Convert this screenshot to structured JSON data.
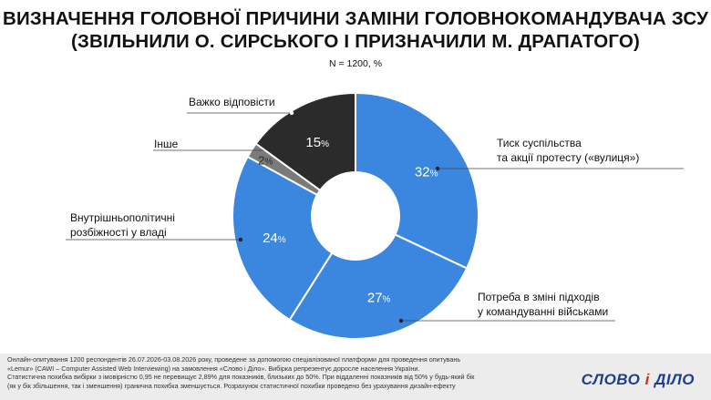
{
  "title_line1": "ВИЗНАЧЕННЯ ГОЛОВНОЇ ПРИЧИНИ ЗАМІНИ ГОЛОВНОКОМАНДУВАЧА ЗСУ",
  "title_line2": "(ЗВІЛЬНИЛИ О. СИРСЬКОГО І ПРИЗНАЧИЛИ М. ДРАПАТОГО)",
  "subtitle": "N = 1200, %",
  "chart_data": {
    "type": "pie",
    "variant": "donut",
    "start": "12 o'clock, clockwise",
    "slices": [
      {
        "label_lines": [
          "Тиск суспільства",
          "та акції протесту («вулиця»)"
        ],
        "value": 32,
        "display": "32",
        "color": "#3b87e0",
        "text_color": "#ffffff"
      },
      {
        "label_lines": [
          "Потреба в зміні підходів",
          "у командуванні військами"
        ],
        "value": 27,
        "display": "27",
        "color": "#3b87e0",
        "text_color": "#ffffff"
      },
      {
        "label_lines": [
          "Внутрішньополітичні",
          "розбіжності у владі"
        ],
        "value": 24,
        "display": "24",
        "color": "#3b87e0",
        "text_color": "#ffffff"
      },
      {
        "label_lines": [
          "Інше"
        ],
        "value": 2,
        "display": "2",
        "color": "#7a7a7a",
        "text_color": "#2a2a2a"
      },
      {
        "label_lines": [
          "Важко відповісти"
        ],
        "value": 15,
        "display": "15",
        "color": "#2b2b2b",
        "text_color": "#ffffff"
      }
    ],
    "unit": "%"
  },
  "footer": {
    "lines": [
      "Онлайн-опитування 1200 респондентів 26.07.2026-03.08.2026 року, проведене за допомогою спеціалізованої платформи для проведення опитувань",
      "«Lemur» (CAWI – Computer Assisted Web Interviewing) на замовлення «Слово і Діло». Вибірка репрезентує доросле населення України.",
      "Статистична похибка вибірки з імовірністю 0,95 не перевищує 2,89% для показників, близьких до 50%. При віддаленні показників від 50% у будь-який бік",
      "(як у бік збільшення, так і зменшення) гранична похибка зменшується. Розрахунок статистичної похибки проведено без урахування дизайн-ефекту"
    ]
  },
  "logo": {
    "part1": "СЛОВО",
    "part2": "і",
    "part3": "ДІЛО"
  }
}
